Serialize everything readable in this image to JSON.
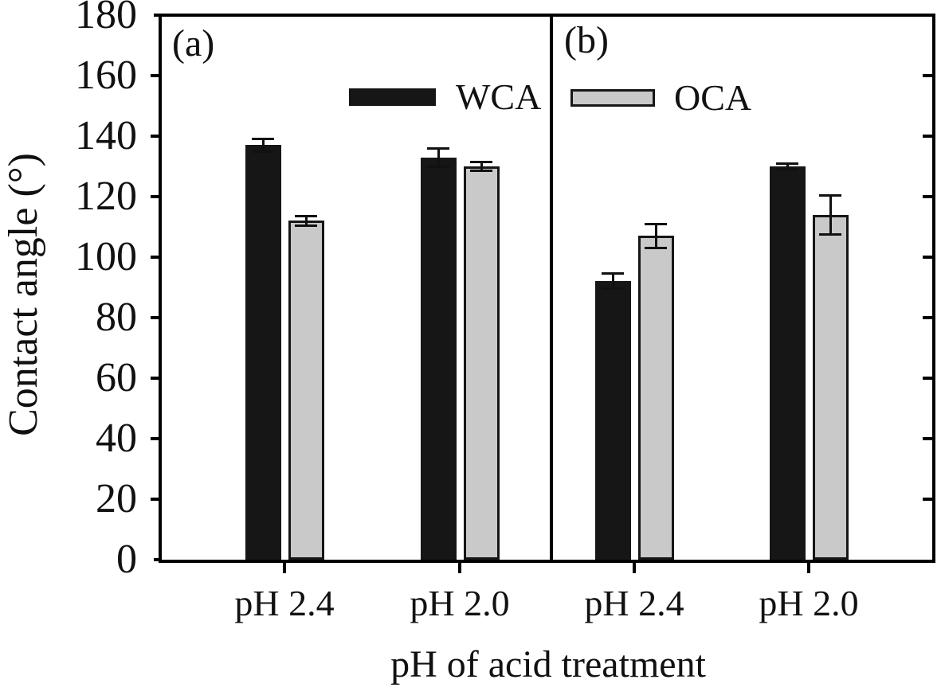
{
  "chart_data": {
    "type": "bar",
    "title": "",
    "xlabel": "pH of acid treatment",
    "ylabel": "Contact angle (°)",
    "ylim": [
      0,
      180
    ],
    "yticks": [
      0,
      20,
      40,
      60,
      80,
      100,
      120,
      140,
      160,
      180
    ],
    "grid": false,
    "legend_position": "top-inside",
    "panels": [
      {
        "label": "(a)",
        "categories": [
          "pH 2.4",
          "pH 2.0"
        ],
        "series": [
          {
            "name": "WCA",
            "values": [
              137,
              133
            ],
            "errors": [
              2,
              3
            ]
          },
          {
            "name": "OCA",
            "values": [
              112,
              130
            ],
            "errors": [
              1.5,
              1.5
            ]
          }
        ]
      },
      {
        "label": "(b)",
        "categories": [
          "pH 2.4",
          "pH 2.0"
        ],
        "series": [
          {
            "name": "WCA",
            "values": [
              92,
              130
            ],
            "errors": [
              2.5,
              1
            ]
          },
          {
            "name": "OCA",
            "values": [
              107,
              114
            ],
            "errors": [
              4,
              6.5
            ]
          }
        ]
      }
    ],
    "legend": [
      {
        "label": "WCA",
        "color": "#161616"
      },
      {
        "label": "OCA",
        "color": "#c9c9c9"
      }
    ],
    "axis_color": "#000000"
  }
}
